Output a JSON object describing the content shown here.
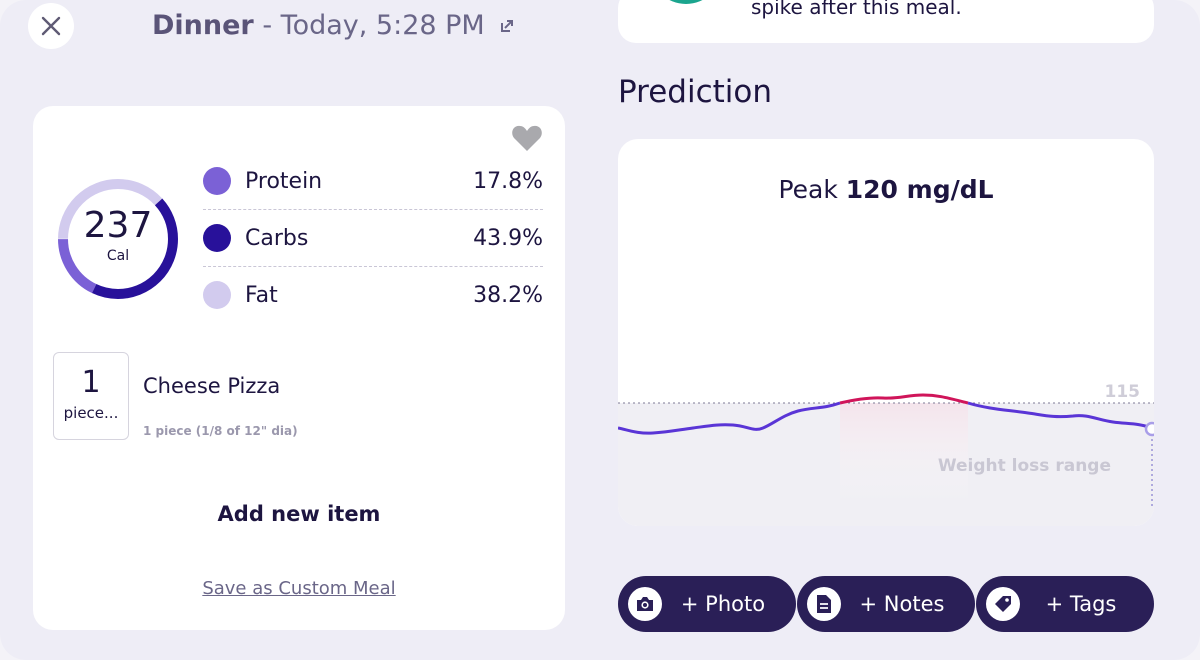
{
  "header": {
    "meal": "Dinner",
    "datetime": "- Today, 5:28 PM"
  },
  "top_card": {
    "text": "spike after this meal."
  },
  "nutrition": {
    "calories": "237",
    "calories_unit": "Cal",
    "macros": [
      {
        "name": "Protein",
        "value": "17.8%",
        "percent": 17.8,
        "color": "#7b61d6"
      },
      {
        "name": "Carbs",
        "value": "43.9%",
        "percent": 43.9,
        "color": "#28119a"
      },
      {
        "name": "Fat",
        "value": "38.2%",
        "percent": 38.2,
        "color": "#d2cbee"
      }
    ]
  },
  "food_item": {
    "quantity": "1",
    "unit": "piece...",
    "name": "Cheese Pizza",
    "portion": "1 piece (1/8 of 12\" dia)"
  },
  "actions_left": {
    "add_item": "Add new item",
    "save_custom": "Save as Custom Meal"
  },
  "prediction": {
    "title": "Prediction",
    "peak_label": "Peak",
    "peak_value": "120 mg/dL",
    "threshold_label": "115",
    "range_label": "Weight loss range",
    "colors": {
      "normal": "#5a35d6",
      "spike": "#d0155a"
    }
  },
  "buttons": [
    {
      "label": "+ Photo",
      "icon": "camera-icon"
    },
    {
      "label": "+ Notes",
      "icon": "notes-icon"
    },
    {
      "label": "+ Tags",
      "icon": "tag-icon"
    }
  ]
}
